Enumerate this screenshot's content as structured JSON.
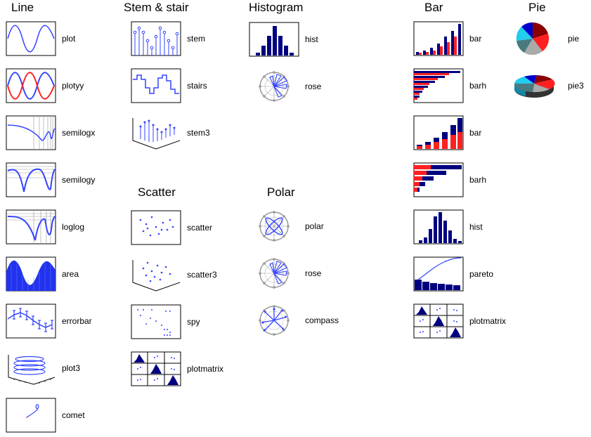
{
  "headers": {
    "line": "Line",
    "stem": "Stem & stair",
    "histogram": "Histogram",
    "bar": "Bar",
    "pie": "Pie",
    "scatter": "Scatter",
    "polar": "Polar"
  },
  "line_items": [
    "plot",
    "plotyy",
    "semilogx",
    "semilogy",
    "loglog",
    "area",
    "errorbar",
    "plot3",
    "comet"
  ],
  "stem_items": [
    "stem",
    "stairs",
    "stem3"
  ],
  "scatter_items": [
    "scatter",
    "scatter3",
    "spy",
    "plotmatrix"
  ],
  "hist_items": [
    "hist",
    "rose"
  ],
  "polar_items": [
    "polar",
    "rose",
    "compass"
  ],
  "bar_items": [
    "bar",
    "barh",
    "bar",
    "barh",
    "hist",
    "pareto",
    "plotmatrix"
  ],
  "pie_items": [
    "pie",
    "pie3"
  ],
  "colors": {
    "blue": "#3344ff",
    "navy": "#000080",
    "red": "#ff2020",
    "grey": "#999999"
  }
}
